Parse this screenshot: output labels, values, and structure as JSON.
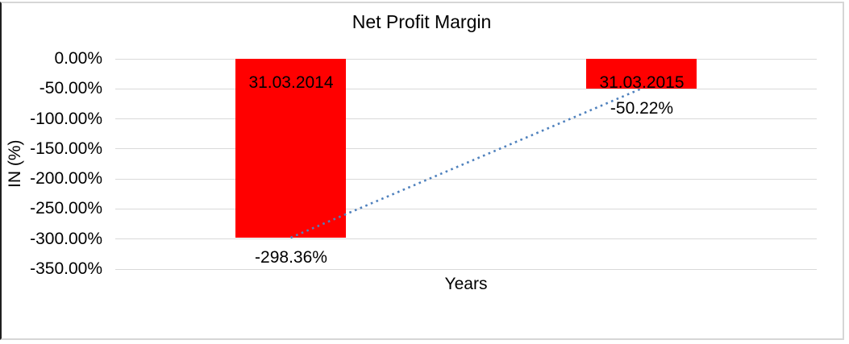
{
  "chart_data": {
    "type": "bar",
    "title": "Net Profit Margin",
    "xlabel": "Years",
    "ylabel": "IN (%)",
    "categories": [
      "31.03.2014",
      "31.03.2015"
    ],
    "values": [
      -298.36,
      -50.22
    ],
    "value_labels": [
      "-298.36%",
      "-50.22%"
    ],
    "category_label_position": "inside-top-of-bar",
    "ylim": [
      -350,
      0
    ],
    "ytick_labels": [
      "0.00%",
      "-50.00%",
      "-100.00%",
      "-150.00%",
      "-200.00%",
      "-250.00%",
      "-300.00%",
      "-350.00%"
    ],
    "grid": true,
    "legend_position": "none",
    "bar_color": "#FF0000",
    "gridline_color": "#d9d9d9",
    "trendline": {
      "type": "linear",
      "style": "dotted",
      "color": "#4F81BD",
      "from": {
        "category": "31.03.2014",
        "value": -298.36
      },
      "to": {
        "category": "31.03.2015",
        "value": -50.22
      }
    }
  }
}
